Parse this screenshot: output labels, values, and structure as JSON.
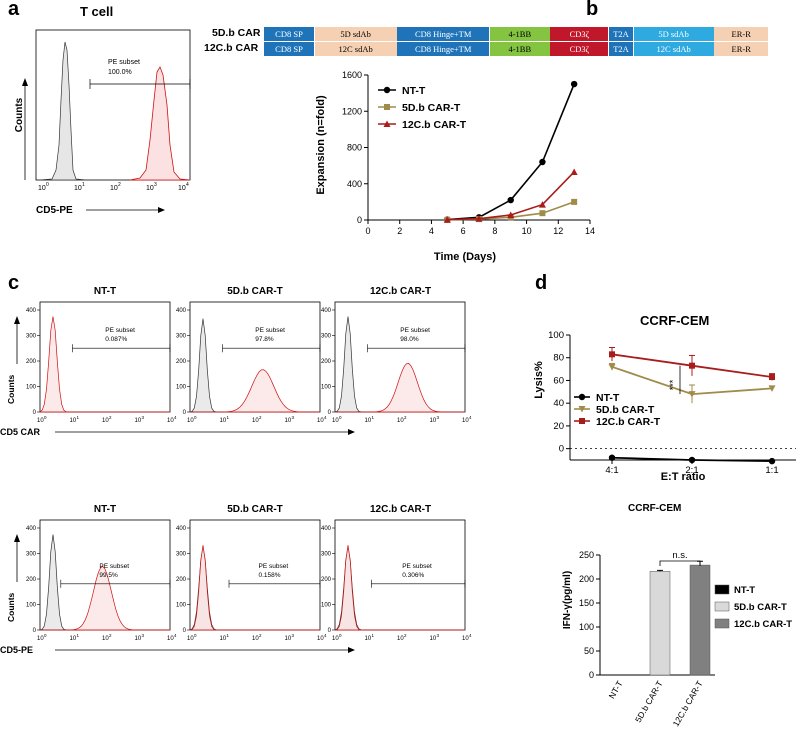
{
  "panels": {
    "a": "a",
    "b": "b",
    "c": "c",
    "d": "d"
  },
  "panel_a": {
    "title": "T cell",
    "ylabel": "Counts",
    "xlabel": "CD5-PE",
    "gate_label": "PE subset",
    "gate_value": "100.0%",
    "x_ticks": [
      "10",
      "10",
      "10",
      "10",
      "10"
    ],
    "x_tick_exps": [
      "0",
      "1",
      "2",
      "3",
      "4"
    ]
  },
  "constructs": {
    "rows": [
      {
        "name": "5D.b CAR",
        "segments": [
          "CD8 SP",
          "5D sdAb",
          "CD8 Hinge+TM",
          "4-1BB",
          "CD3ζ",
          "T2A",
          "5D sdAb",
          "ER-R"
        ]
      },
      {
        "name": "12C.b CAR",
        "segments": [
          "CD8 SP",
          "12C sdAb",
          "CD8 Hinge+TM",
          "4-1BB",
          "CD3ζ",
          "T2A",
          "12C sdAb",
          "ER-R"
        ]
      }
    ],
    "colors": [
      "#1f74b9",
      "#f6d0b2",
      "#1f74b9",
      "#84c441",
      "#c0182a",
      "#1f74b9",
      "#2eaae1",
      "#f6d0b2"
    ]
  },
  "chart_data": [
    {
      "type": "line",
      "panel": "b",
      "ylabel": "Expansion (n=fold)",
      "xlabel": "Time (Days)",
      "xlim": [
        0,
        14
      ],
      "ylim": [
        0,
        1600
      ],
      "x_ticks": [
        "0",
        "2",
        "4",
        "6",
        "8",
        "10",
        "12",
        "14"
      ],
      "y_ticks": [
        "0",
        "400",
        "800",
        "1200",
        "1600"
      ],
      "series": [
        {
          "name": "NT-T",
          "color": "#000000",
          "marker": "circle",
          "x": [
            5,
            7,
            9,
            11,
            13
          ],
          "values": [
            5,
            30,
            220,
            640,
            1500
          ]
        },
        {
          "name": "5D.b CAR-T",
          "color": "#a08b48",
          "marker": "square",
          "x": [
            5,
            7,
            9,
            11,
            13
          ],
          "values": [
            2,
            10,
            30,
            75,
            200
          ]
        },
        {
          "name": "12C.b CAR-T",
          "color": "#a81c1c",
          "marker": "triangle",
          "x": [
            5,
            7,
            9,
            11,
            13
          ],
          "values": [
            3,
            15,
            55,
            170,
            530
          ]
        }
      ]
    },
    {
      "type": "line",
      "panel": "d",
      "title": "CCRF-CEM",
      "ylabel": "Lysis%",
      "xlabel": "E:T ratio",
      "categories": [
        "4:1",
        "2:1",
        "1:1"
      ],
      "ylim": [
        -10,
        100
      ],
      "y_ticks": [
        "0",
        "20",
        "40",
        "60",
        "80",
        "100"
      ],
      "annotation": "***",
      "series": [
        {
          "name": "NT-T",
          "color": "#000000",
          "marker": "circle",
          "values": [
            -8,
            -10,
            -11
          ],
          "errors": [
            1,
            1,
            1
          ]
        },
        {
          "name": "5D.b CAR-T",
          "color": "#a08b48",
          "marker": "triangle-down",
          "values": [
            72,
            48,
            53
          ],
          "errors": [
            3,
            8,
            2
          ]
        },
        {
          "name": "12C.b CAR-T",
          "color": "#a81c1c",
          "marker": "square",
          "values": [
            83,
            73,
            63
          ],
          "errors": [
            6,
            9,
            3
          ]
        }
      ]
    },
    {
      "type": "bar",
      "panel": "d-bottom",
      "title": "CCRF-CEM",
      "ylabel": "IFN-γ(pg/ml)",
      "categories": [
        "NT-T",
        "5D.b CAR-T",
        "12C.b CAR-T"
      ],
      "values": [
        0,
        216,
        229
      ],
      "errors": [
        0,
        2,
        8
      ],
      "colors": [
        "#000000",
        "#d9d9d9",
        "#808080"
      ],
      "ylim": [
        0,
        250
      ],
      "y_ticks": [
        "0",
        "50",
        "100",
        "150",
        "200",
        "250"
      ],
      "annotation": "n.s."
    }
  ],
  "panel_c": {
    "top_titles": [
      "NT-T",
      "5D.b CAR-T",
      "12C.b CAR-T"
    ],
    "top_gates": [
      "0.087%",
      "97.8%",
      "98.0%"
    ],
    "top_xlabel": "CD5 CAR",
    "bottom_titles": [
      "NT-T",
      "5D.b CAR-T",
      "12C.b CAR-T"
    ],
    "bottom_gates": [
      "99.5%",
      "0.158%",
      "0.306%"
    ],
    "bottom_xlabel": "CD5-PE",
    "gate_label": "PE subset",
    "ylabel": "Counts",
    "top_y_ticks": [
      "0",
      "100",
      "200",
      "300",
      "400"
    ],
    "bottom_y_ticks": [
      "0",
      "100",
      "200",
      "300",
      "400"
    ],
    "x_tick_exps": [
      "0",
      "1",
      "2",
      "3",
      "4"
    ]
  }
}
